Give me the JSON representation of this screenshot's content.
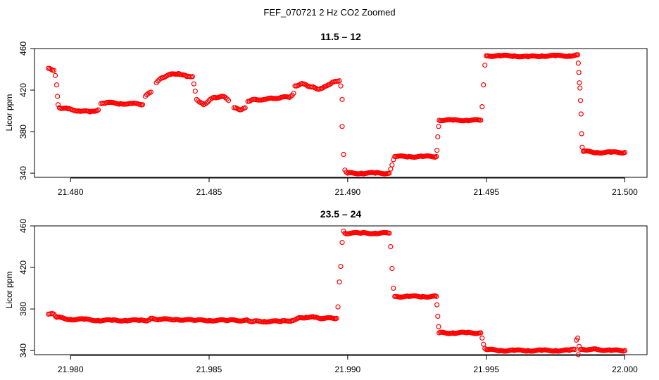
{
  "figure": {
    "title": "FEF_070721  2 Hz CO2 Zoomed",
    "marker_color": "#ff0000"
  },
  "chart_data": [
    {
      "type": "scatter",
      "title": "11.5 – 12",
      "xlabel": "",
      "ylabel": "Licor ppm",
      "xlim": [
        21.4787,
        21.5008
      ],
      "ylim": [
        336,
        460
      ],
      "xticks": [
        21.48,
        21.485,
        21.49,
        21.495,
        21.5
      ],
      "xtick_labels": [
        "21.480",
        "21.485",
        "21.490",
        "21.495",
        "21.500"
      ],
      "yticks": [
        340,
        380,
        420,
        460
      ],
      "ytick_labels": [
        "340",
        "380",
        "420",
        "460"
      ],
      "x_range": [
        21.4792,
        21.5
      ],
      "series": [
        {
          "marker": "open-circle",
          "color": "#ff0000",
          "points": [
            [
              21.4792,
              441
            ],
            [
              21.4793,
              440
            ],
            [
              21.4794,
              439
            ],
            [
              21.47945,
              434
            ],
            [
              21.4795,
              425
            ],
            [
              21.47953,
              414
            ],
            [
              21.47955,
              406
            ],
            [
              21.4796,
              403
            ],
            [
              21.4799,
              402
            ],
            [
              21.4803,
              400
            ],
            [
              21.4807,
              399
            ],
            [
              21.481,
              401
            ],
            [
              21.4811,
              407
            ],
            [
              21.4813,
              408
            ],
            [
              21.4818,
              407
            ],
            [
              21.4822,
              407
            ],
            [
              21.4826,
              406
            ],
            [
              21.4827,
              414
            ],
            [
              21.4829,
              418
            ],
            [
              21.4831,
              427
            ],
            [
              21.4833,
              432
            ],
            [
              21.4836,
              435
            ],
            [
              21.4839,
              436
            ],
            [
              21.4842,
              433
            ],
            [
              21.4844,
              433
            ],
            [
              21.48445,
              426
            ],
            [
              21.4845,
              419
            ],
            [
              21.48455,
              411
            ],
            [
              21.4847,
              408
            ],
            [
              21.4848,
              406
            ],
            [
              21.485,
              410
            ],
            [
              21.4852,
              413
            ],
            [
              21.4855,
              414
            ],
            [
              21.4857,
              410
            ],
            [
              21.4859,
              403
            ],
            [
              21.4861,
              401
            ],
            [
              21.4863,
              403
            ],
            [
              21.4864,
              409
            ],
            [
              21.4866,
              411
            ],
            [
              21.487,
              411
            ],
            [
              21.4873,
              412
            ],
            [
              21.4876,
              413
            ],
            [
              21.4879,
              413
            ],
            [
              21.48805,
              417
            ],
            [
              21.4881,
              424
            ],
            [
              21.4883,
              426
            ],
            [
              21.4885,
              425
            ],
            [
              21.4887,
              423
            ],
            [
              21.4889,
              421
            ],
            [
              21.4891,
              422
            ],
            [
              21.4893,
              425
            ],
            [
              21.4895,
              428
            ],
            [
              21.4897,
              429
            ],
            [
              21.48975,
              424
            ],
            [
              21.4898,
              411
            ],
            [
              21.4898,
              385
            ],
            [
              21.48985,
              358
            ],
            [
              21.4899,
              343
            ],
            [
              21.49,
              340
            ],
            [
              21.4905,
              340
            ],
            [
              21.491,
              340
            ],
            [
              21.4915,
              340
            ],
            [
              21.49155,
              344
            ],
            [
              21.4916,
              348
            ],
            [
              21.49165,
              353
            ],
            [
              21.4917,
              356
            ],
            [
              21.4922,
              356
            ],
            [
              21.4927,
              356
            ],
            [
              21.4932,
              356
            ],
            [
              21.49322,
              362
            ],
            [
              21.49325,
              375
            ],
            [
              21.49328,
              385
            ],
            [
              21.4933,
              391
            ],
            [
              21.4938,
              391
            ],
            [
              21.4943,
              391
            ],
            [
              21.4948,
              391
            ],
            [
              21.49485,
              404
            ],
            [
              21.4949,
              425
            ],
            [
              21.49495,
              444
            ],
            [
              21.495,
              453
            ],
            [
              21.4955,
              453
            ],
            [
              21.496,
              453
            ],
            [
              21.4965,
              452
            ],
            [
              21.497,
              453
            ],
            [
              21.4975,
              453
            ],
            [
              21.498,
              453
            ],
            [
              21.4983,
              454
            ],
            [
              21.49832,
              446
            ],
            [
              21.49834,
              437
            ],
            [
              21.49836,
              427
            ],
            [
              21.49838,
              422
            ],
            [
              21.4984,
              410
            ],
            [
              21.49842,
              397
            ],
            [
              21.49844,
              378
            ],
            [
              21.49846,
              365
            ],
            [
              21.4985,
              361
            ],
            [
              21.499,
              360
            ],
            [
              21.4995,
              360
            ],
            [
              21.5,
              360
            ]
          ]
        }
      ]
    },
    {
      "type": "scatter",
      "title": "23.5 – 24",
      "xlabel": "",
      "ylabel": "Licor ppm",
      "xlim": [
        21.9787,
        22.0008
      ],
      "ylim": [
        336,
        460
      ],
      "xticks": [
        21.98,
        21.985,
        21.99,
        21.995,
        22.0
      ],
      "xtick_labels": [
        "21.980",
        "21.985",
        "21.990",
        "21.995",
        "22.000"
      ],
      "yticks": [
        340,
        380,
        420,
        460
      ],
      "ytick_labels": [
        "340",
        "380",
        "420",
        "460"
      ],
      "x_range": [
        21.9792,
        22.0
      ],
      "series": [
        {
          "marker": "open-circle",
          "color": "#ff0000",
          "points": [
            [
              21.9792,
              375
            ],
            [
              21.9794,
              375
            ],
            [
              21.9795,
              372
            ],
            [
              21.98,
              370
            ],
            [
              21.9805,
              370
            ],
            [
              21.981,
              369
            ],
            [
              21.9815,
              369
            ],
            [
              21.982,
              369
            ],
            [
              21.9825,
              369
            ],
            [
              21.9828,
              369
            ],
            [
              21.9829,
              371
            ],
            [
              21.9832,
              370
            ],
            [
              21.9838,
              370
            ],
            [
              21.9845,
              369
            ],
            [
              21.985,
              369
            ],
            [
              21.9857,
              369
            ],
            [
              21.9864,
              369
            ],
            [
              21.9866,
              368
            ],
            [
              21.987,
              368
            ],
            [
              21.9876,
              368
            ],
            [
              21.988,
              369
            ],
            [
              21.9882,
              371
            ],
            [
              21.9885,
              372
            ],
            [
              21.9888,
              372
            ],
            [
              21.9891,
              371
            ],
            [
              21.9896,
              371
            ],
            [
              21.98965,
              382
            ],
            [
              21.9897,
              406
            ],
            [
              21.98975,
              421
            ],
            [
              21.9898,
              444
            ],
            [
              21.98985,
              455
            ],
            [
              21.9899,
              453
            ],
            [
              21.9905,
              453
            ],
            [
              21.991,
              453
            ],
            [
              21.9915,
              453
            ],
            [
              21.99155,
              440
            ],
            [
              21.9916,
              419
            ],
            [
              21.99165,
              400
            ],
            [
              21.9917,
              392
            ],
            [
              21.9922,
              392
            ],
            [
              21.9927,
              392
            ],
            [
              21.9932,
              392
            ],
            [
              21.99322,
              384
            ],
            [
              21.99325,
              373
            ],
            [
              21.99328,
              363
            ],
            [
              21.9933,
              357
            ],
            [
              21.9938,
              357
            ],
            [
              21.9943,
              357
            ],
            [
              21.9948,
              357
            ],
            [
              21.99485,
              352
            ],
            [
              21.9949,
              346
            ],
            [
              21.99495,
              342
            ],
            [
              21.995,
              341
            ],
            [
              21.9955,
              340
            ],
            [
              21.996,
              340
            ],
            [
              21.9965,
              340
            ],
            [
              21.997,
              340
            ],
            [
              21.9975,
              340
            ],
            [
              21.998,
              340
            ],
            [
              21.9982,
              341
            ],
            [
              21.99825,
              350
            ],
            [
              21.9983,
              352
            ],
            [
              21.99832,
              336
            ],
            [
              21.99835,
              344
            ],
            [
              21.9984,
              341
            ],
            [
              21.9987,
              341
            ],
            [
              21.999,
              341
            ],
            [
              21.9995,
              340
            ],
            [
              22.0,
              340
            ]
          ]
        }
      ]
    }
  ]
}
